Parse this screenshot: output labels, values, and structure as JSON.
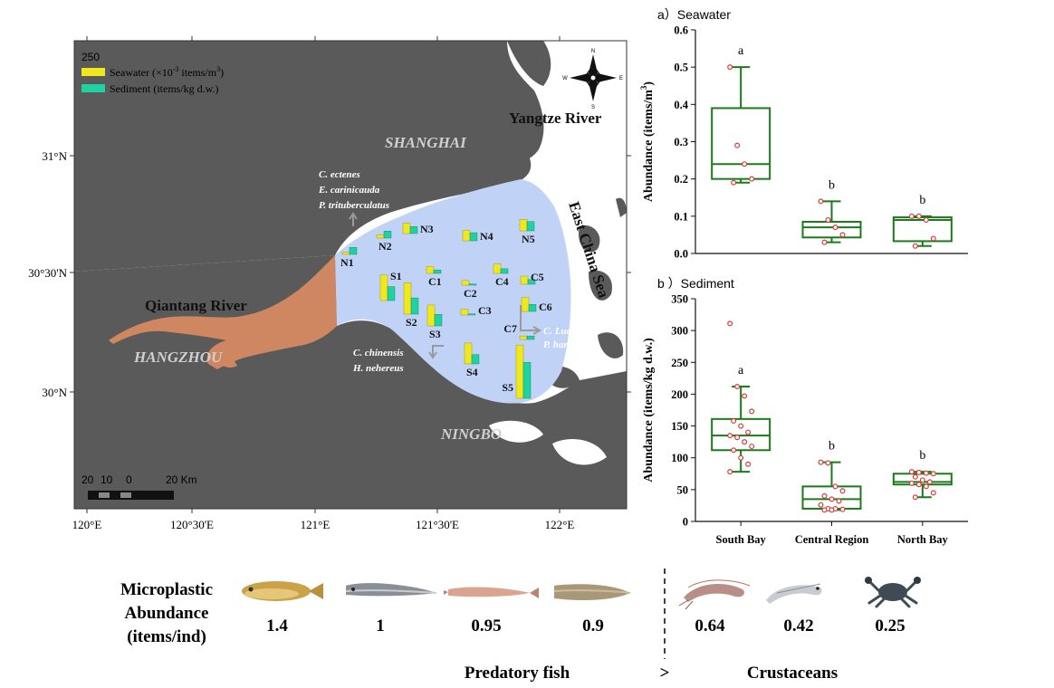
{
  "map": {
    "legend": {
      "scale_value": "250",
      "seawater_label": "Seawater (×10",
      "seawater_exp": "-3",
      "seawater_unit": " items/m",
      "seawater_unit_exp": "3",
      "seawater_close": ")",
      "sediment_label": "Sediment  (items/kg d.w.)",
      "seawater_color": "#f0e81c",
      "sediment_color": "#1fd3a0"
    },
    "compass": {
      "n": "N",
      "s": "S",
      "e": "E",
      "w": "W"
    },
    "places": {
      "shanghai": "SHANGHAI",
      "hangzhou": "HANGZHOU",
      "ningbo": "NINGBO",
      "yangtze": "Yangtze River",
      "qiantang": "Qiantang River",
      "east_china_sea": "East China Sea"
    },
    "species_labels": {
      "north": [
        "C. ectenes",
        "E. carinicauda",
        "P. trituberculatus"
      ],
      "east": [
        "C. Lucidus",
        "P. hardwickii"
      ],
      "south": [
        "C. chinensis",
        "H. nehereus"
      ]
    },
    "x_ticks": [
      "120°E",
      "120°30'E",
      "121°E",
      "121°30'E",
      "122°E"
    ],
    "y_ticks": [
      "31°N",
      "30°30'N",
      "30°N"
    ],
    "scale_bar": {
      "labels": [
        "20",
        "10",
        "0",
        "20 Km"
      ]
    },
    "land_color": "#5a5a5a",
    "bay_color": "#c0d3f7",
    "river_color": "#cf8762",
    "stations": [
      {
        "name": "N1",
        "seawater": 2,
        "sediment": 6
      },
      {
        "name": "N2",
        "seawater": 3,
        "sediment": 6
      },
      {
        "name": "N3",
        "seawater": 9,
        "sediment": 6
      },
      {
        "name": "N4",
        "seawater": 9,
        "sediment": 7
      },
      {
        "name": "N5",
        "seawater": 10,
        "sediment": 8
      },
      {
        "name": "S1",
        "seawater": 22,
        "sediment": 12
      },
      {
        "name": "S2",
        "seawater": 27,
        "sediment": 14
      },
      {
        "name": "S3",
        "seawater": 18,
        "sediment": 10
      },
      {
        "name": "S4",
        "seawater": 18,
        "sediment": 8
      },
      {
        "name": "S5",
        "seawater": 46,
        "sediment": 31
      },
      {
        "name": "C1",
        "seawater": 6,
        "sediment": 3
      },
      {
        "name": "C2",
        "seawater": 4,
        "sediment": 1
      },
      {
        "name": "C3",
        "seawater": 5,
        "sediment": 1
      },
      {
        "name": "C4",
        "seawater": 8,
        "sediment": 4
      },
      {
        "name": "C5",
        "seawater": 7,
        "sediment": 4
      },
      {
        "name": "C6",
        "seawater": 12,
        "sediment": 6
      },
      {
        "name": "C7",
        "seawater": 3,
        "sediment": 3
      }
    ]
  },
  "chart_data": [
    {
      "type": "box",
      "panel_title": "a）Seawater",
      "ylabel_main": "Abundance  (items/m",
      "ylabel_exp": "3",
      "ylabel_close": ")",
      "ylim": [
        0,
        0.6
      ],
      "yticks": [
        "0.0",
        "0.1",
        "0.2",
        "0.3",
        "0.4",
        "0.5",
        "0.6"
      ],
      "categories": [
        "South Bay",
        "Central Region",
        "North Bay"
      ],
      "boxes": [
        {
          "min": 0.19,
          "q1": 0.2,
          "median": 0.24,
          "q3": 0.39,
          "max": 0.5,
          "points": [
            0.5,
            0.29,
            0.24,
            0.2,
            0.19
          ]
        },
        {
          "min": 0.03,
          "q1": 0.043,
          "median": 0.07,
          "q3": 0.085,
          "max": 0.14,
          "points": [
            0.14,
            0.09,
            0.07,
            0.05,
            0.03
          ]
        },
        {
          "min": 0.02,
          "q1": 0.033,
          "median": 0.09,
          "q3": 0.097,
          "max": 0.1,
          "points": [
            0.1,
            0.1,
            0.09,
            0.04,
            0.02
          ]
        }
      ],
      "letters": [
        "a",
        "b",
        "b"
      ],
      "box_color": "#1b7a1b",
      "point_color": "#d93a3a"
    },
    {
      "type": "box",
      "panel_title": "b ）Sediment",
      "ylabel_main": "Abundance  (items/kg d.w.)",
      "ylim": [
        0,
        350
      ],
      "yticks": [
        "0",
        "50",
        "100",
        "150",
        "200",
        "250",
        "300",
        "350"
      ],
      "categories": [
        "South Bay",
        "Central Region",
        "North Bay"
      ],
      "boxes": [
        {
          "min": 78,
          "q1": 112,
          "median": 135,
          "q3": 161,
          "max": 212,
          "points": [
            311,
            212,
            197,
            173,
            158,
            150,
            140,
            135,
            132,
            125,
            118,
            112,
            100,
            90,
            78
          ]
        },
        {
          "min": 18,
          "q1": 20,
          "median": 35,
          "q3": 55,
          "max": 93,
          "points": [
            93,
            92,
            55,
            48,
            40,
            35,
            32,
            26,
            20,
            20,
            19,
            18,
            18
          ]
        },
        {
          "min": 38,
          "q1": 58,
          "median": 62,
          "q3": 75,
          "max": 78,
          "points": [
            78,
            77,
            76,
            75,
            70,
            65,
            62,
            60,
            58,
            55,
            45,
            38
          ]
        }
      ],
      "letters": [
        "a",
        "b",
        "b"
      ],
      "box_color": "#1b7a1b",
      "point_color": "#d93a3a"
    }
  ],
  "bottom": {
    "row_label": [
      "Microplastic",
      "Abundance",
      "(items/ind)"
    ],
    "organisms": [
      {
        "value": "1.4"
      },
      {
        "value": "1"
      },
      {
        "value": "0.95"
      },
      {
        "value": "0.9"
      },
      {
        "value": "0.64"
      },
      {
        "value": "0.42"
      },
      {
        "value": "0.25"
      }
    ],
    "group_left": "Predatory fish",
    "group_sep": ">",
    "group_right": "Crustaceans"
  }
}
